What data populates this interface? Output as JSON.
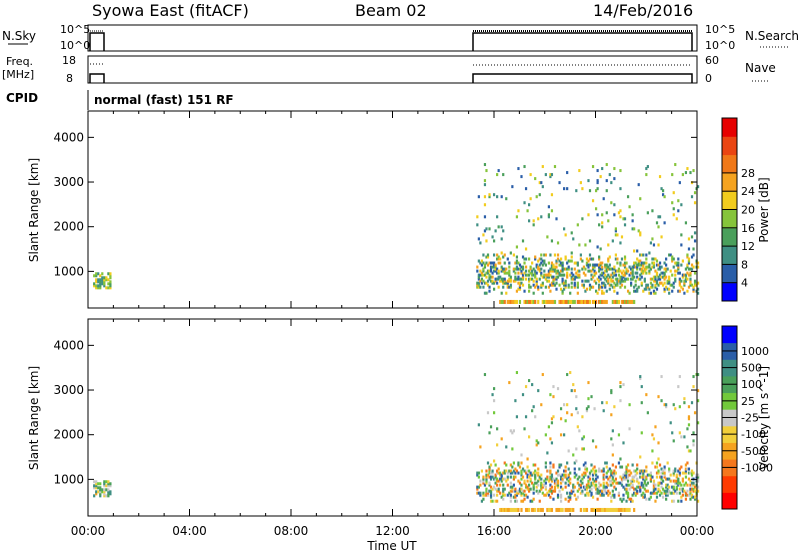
{
  "header": {
    "station": "Syowa East (fitACF)",
    "beam": "Beam 02",
    "date": "14/Feb/2016"
  },
  "strip_labels": {
    "nsky": "N.Sky",
    "nsky_top": "10^5",
    "nsky_bottom": "10^0",
    "nsearch": "N.Search",
    "nsearch_top": "10^5",
    "nsearch_bottom": "10^0",
    "freq": "Freq.",
    "freq_unit": "[MHz]",
    "freq_top": "18",
    "freq_bottom": "8",
    "nave": "Nave",
    "nave_top": "60",
    "nave_bottom": "0",
    "cpid": "CPID",
    "cpid_text": "normal (fast) 151 RF"
  },
  "colors": {
    "power": [
      "#0000ff",
      "#2a5ea8",
      "#3f8f83",
      "#4a9f5b",
      "#86c43b",
      "#f2cc1e",
      "#f5a320",
      "#f07818",
      "#ea4512",
      "#e60000"
    ],
    "velocity": [
      "#ff0000",
      "#ff3a00",
      "#f5771d",
      "#f5a320",
      "#f2cf3a",
      "#c8c8c8",
      "#72c93b",
      "#4aa05a",
      "#3f8f83",
      "#2a5ea8",
      "#0000ff"
    ]
  },
  "chart_data": [
    {
      "type": "heatmap",
      "name": "power",
      "ylabel": "Slant Range [km]",
      "yticks": [
        "1000",
        "2000",
        "3000",
        "4000"
      ],
      "colorbar_label": "Power [dB]",
      "colorbar_ticks": [
        "4",
        "8",
        "12",
        "16",
        "20",
        "24",
        "28"
      ],
      "xlim": [
        0,
        24
      ],
      "ylim": [
        180,
        4590
      ],
      "data_segments_ut": [
        [
          0.1,
          0.9
        ],
        [
          15.3,
          24.0
        ]
      ]
    },
    {
      "type": "heatmap",
      "name": "velocity",
      "ylabel": "Slant Range [km]",
      "yticks": [
        "1000",
        "2000",
        "3000",
        "4000"
      ],
      "colorbar_label": "Velocity [m s^-1]",
      "colorbar_ticks": [
        "1000",
        "500",
        "100",
        "25",
        "-25",
        "-100",
        "-500",
        "-1000"
      ],
      "xlim": [
        0,
        24
      ],
      "ylim": [
        180,
        4590
      ],
      "data_segments_ut": [
        [
          0.1,
          0.9
        ],
        [
          15.3,
          24.0
        ]
      ]
    }
  ],
  "xaxis": {
    "ticks": [
      "00:00",
      "04:00",
      "08:00",
      "12:00",
      "16:00",
      "20:00",
      "00:00"
    ],
    "label": "Time UT"
  }
}
